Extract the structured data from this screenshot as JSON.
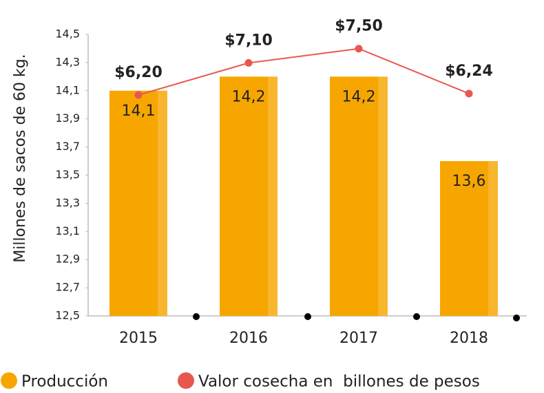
{
  "chart_data": {
    "type": "bar",
    "y_label": "Millones de sacos de 60 kg.",
    "categories": [
      "2015",
      "2016",
      "2017",
      "2018"
    ],
    "series": [
      {
        "name": "Producción",
        "type": "bar",
        "color": "#f7a600",
        "values": [
          14.1,
          14.2,
          14.2,
          13.6
        ],
        "value_labels": [
          "14,1",
          "14,2",
          "14,2",
          "13,6"
        ]
      },
      {
        "name": "Valor cosecha en  billones de pesos",
        "type": "line",
        "axis": "y2",
        "color": "#e8584e",
        "values": [
          6.2,
          7.1,
          7.5,
          6.24
        ],
        "value_labels": [
          "$6,20",
          "$7,10",
          "$7,50",
          "$6,24"
        ]
      }
    ],
    "ylim": [
      12.5,
      14.5
    ],
    "yticks": [
      {
        "value": 12.5,
        "label": "12,5"
      },
      {
        "value": 12.7,
        "label": "12,7"
      },
      {
        "value": 12.9,
        "label": "12,9"
      },
      {
        "value": 13.1,
        "label": "13,1"
      },
      {
        "value": 13.3,
        "label": "13,3"
      },
      {
        "value": 13.5,
        "label": "13,5"
      },
      {
        "value": 13.7,
        "label": "13,7"
      },
      {
        "value": 13.9,
        "label": "13,9"
      },
      {
        "value": 14.1,
        "label": "14,1"
      },
      {
        "value": 14.3,
        "label": "14,3"
      },
      {
        "value": 14.5,
        "label": "14,5"
      }
    ],
    "y2lim": [
      0,
      7.9
    ],
    "grid": false
  }
}
